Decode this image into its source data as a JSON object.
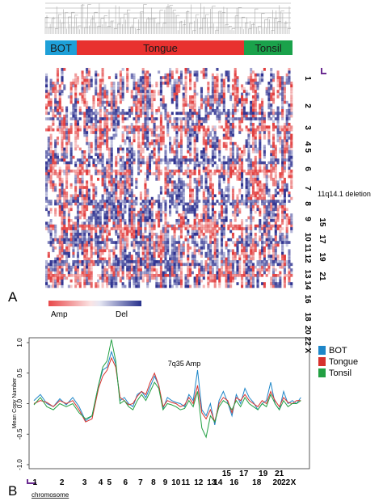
{
  "panel_a": {
    "label": "A",
    "groups": [
      {
        "name": "BOT",
        "color": "#1ea0d8"
      },
      {
        "name": "Tongue",
        "color": "#e8312f"
      },
      {
        "name": "Tonsil",
        "color": "#1aa24b"
      }
    ],
    "chromosome_labels": [
      "1",
      "2",
      "3",
      "4 5",
      "6",
      "7",
      "8",
      "9",
      "10 11",
      "12",
      "13 14",
      "15",
      "16",
      "17",
      "18",
      "19",
      "20 22 X",
      "21"
    ],
    "annotation": "11q14.1 deletion",
    "legend": {
      "amp_label": "Amp",
      "del_label": "Del",
      "amp_color": "#e8484a",
      "del_color": "#27318c"
    },
    "colors": {
      "amp": "#e23b3b",
      "del": "#2b2f8f"
    }
  },
  "panel_b": {
    "label": "B",
    "chart_data": {
      "type": "line",
      "title": "",
      "annotation": "7q35 Amp",
      "ylabel": "Mean Copy Number",
      "xlabel": "chromosome",
      "ylim": [
        -1.0,
        1.0
      ],
      "yticks": [
        "1.0",
        "0.5",
        "0.0",
        "-0.5",
        "-1.0"
      ],
      "ytick_values": [
        1.0,
        0.5,
        0.0,
        -0.5,
        -1.0
      ],
      "x_tick_labels": [
        {
          "label": "1",
          "row": 2,
          "pos": 0.05
        },
        {
          "label": "2",
          "row": 2,
          "pos": 1.3
        },
        {
          "label": "3",
          "row": 2,
          "pos": 2.35
        },
        {
          "label": "4",
          "row": 2,
          "pos": 3.1
        },
        {
          "label": "5",
          "row": 2,
          "pos": 3.5
        },
        {
          "label": "6",
          "row": 2,
          "pos": 4.25
        },
        {
          "label": "7",
          "row": 2,
          "pos": 4.95
        },
        {
          "label": "8",
          "row": 2,
          "pos": 5.55
        },
        {
          "label": "9",
          "row": 2,
          "pos": 6.1
        },
        {
          "label": "10",
          "row": 2,
          "pos": 6.6
        },
        {
          "label": "11",
          "row": 2,
          "pos": 7.05
        },
        {
          "label": "12",
          "row": 2,
          "pos": 7.65
        },
        {
          "label": "13",
          "row": 2,
          "pos": 8.25
        },
        {
          "label": "14",
          "row": 2,
          "pos": 8.55
        },
        {
          "label": "15",
          "row": 1,
          "pos": 8.95
        },
        {
          "label": "16",
          "row": 2,
          "pos": 9.3
        },
        {
          "label": "17",
          "row": 1,
          "pos": 9.75
        },
        {
          "label": "18",
          "row": 2,
          "pos": 10.35
        },
        {
          "label": "19",
          "row": 1,
          "pos": 10.65
        },
        {
          "label": "20",
          "row": 2,
          "pos": 11.3
        },
        {
          "label": "21",
          "row": 1,
          "pos": 11.4
        },
        {
          "label": "22",
          "row": 2,
          "pos": 11.7
        },
        {
          "label": "X",
          "row": 2,
          "pos": 12.05
        }
      ],
      "x_range": [
        0,
        12.5
      ],
      "series": [
        {
          "name": "BOT",
          "color": "#1e86c8",
          "x": [
            0,
            0.3,
            0.6,
            0.9,
            1.2,
            1.5,
            1.8,
            2.1,
            2.4,
            2.7,
            3.0,
            3.2,
            3.4,
            3.6,
            3.8,
            4.0,
            4.2,
            4.4,
            4.6,
            4.8,
            5.0,
            5.2,
            5.4,
            5.6,
            5.8,
            6.0,
            6.2,
            6.4,
            6.6,
            6.8,
            7.0,
            7.2,
            7.4,
            7.6,
            7.8,
            8.0,
            8.2,
            8.4,
            8.6,
            8.8,
            9.0,
            9.2,
            9.4,
            9.6,
            9.8,
            10.0,
            10.2,
            10.4,
            10.6,
            10.8,
            11.0,
            11.2,
            11.4,
            11.6,
            11.8,
            12.0,
            12.2,
            12.4
          ],
          "y": [
            0.05,
            0.15,
            0.0,
            -0.05,
            0.08,
            -0.02,
            0.1,
            -0.05,
            -0.28,
            -0.2,
            0.3,
            0.55,
            0.6,
            0.85,
            0.65,
            0.05,
            0.1,
            0.0,
            -0.05,
            0.15,
            0.2,
            0.1,
            0.28,
            0.45,
            0.3,
            -0.08,
            0.1,
            0.05,
            0.02,
            0.0,
            -0.05,
            0.15,
            0.05,
            0.55,
            -0.1,
            -0.2,
            0.0,
            -0.35,
            0.05,
            0.2,
            0.02,
            -0.2,
            0.15,
            0.0,
            0.25,
            0.1,
            0.02,
            -0.1,
            0.0,
            0.05,
            0.35,
            0.0,
            -0.1,
            0.2,
            0.0,
            0.05,
            0.0,
            0.1
          ]
        },
        {
          "name": "Tongue",
          "color": "#d7312d",
          "x": [
            0,
            0.3,
            0.6,
            0.9,
            1.2,
            1.5,
            1.8,
            2.1,
            2.4,
            2.7,
            3.0,
            3.2,
            3.4,
            3.6,
            3.8,
            4.0,
            4.2,
            4.4,
            4.6,
            4.8,
            5.0,
            5.2,
            5.4,
            5.6,
            5.8,
            6.0,
            6.2,
            6.4,
            6.6,
            6.8,
            7.0,
            7.2,
            7.4,
            7.6,
            7.8,
            8.0,
            8.2,
            8.4,
            8.6,
            8.8,
            9.0,
            9.2,
            9.4,
            9.6,
            9.8,
            10.0,
            10.2,
            10.4,
            10.6,
            10.8,
            11.0,
            11.2,
            11.4,
            11.6,
            11.8,
            12.0,
            12.2,
            12.4
          ],
          "y": [
            0.0,
            0.05,
            0.02,
            -0.05,
            0.05,
            0.0,
            0.05,
            -0.1,
            -0.3,
            -0.25,
            0.25,
            0.45,
            0.55,
            0.75,
            0.6,
            0.1,
            0.05,
            -0.02,
            0.0,
            0.12,
            0.2,
            0.15,
            0.35,
            0.5,
            0.3,
            -0.05,
            0.05,
            0.02,
            0.0,
            -0.05,
            -0.02,
            0.1,
            0.0,
            0.3,
            -0.15,
            -0.25,
            -0.1,
            -0.3,
            0.0,
            0.1,
            0.05,
            -0.15,
            0.1,
            0.05,
            0.15,
            0.05,
            0.0,
            -0.05,
            0.05,
            0.0,
            0.2,
            0.05,
            -0.05,
            0.1,
            0.02,
            0.0,
            0.05,
            0.05
          ]
        },
        {
          "name": "Tonsil",
          "color": "#23a043",
          "x": [
            0,
            0.3,
            0.6,
            0.9,
            1.2,
            1.5,
            1.8,
            2.1,
            2.4,
            2.7,
            3.0,
            3.2,
            3.4,
            3.6,
            3.8,
            4.0,
            4.2,
            4.4,
            4.6,
            4.8,
            5.0,
            5.2,
            5.4,
            5.6,
            5.8,
            6.0,
            6.2,
            6.4,
            6.6,
            6.8,
            7.0,
            7.2,
            7.4,
            7.6,
            7.8,
            8.0,
            8.2,
            8.4,
            8.6,
            8.8,
            9.0,
            9.2,
            9.4,
            9.6,
            9.8,
            10.0,
            10.2,
            10.4,
            10.6,
            10.8,
            11.0,
            11.2,
            11.4,
            11.6,
            11.8,
            12.0,
            12.2,
            12.4
          ],
          "y": [
            -0.02,
            0.1,
            -0.05,
            -0.1,
            0.0,
            -0.05,
            0.0,
            -0.15,
            -0.25,
            -0.2,
            0.3,
            0.6,
            0.7,
            1.05,
            0.7,
            0.0,
            0.05,
            -0.05,
            -0.1,
            0.05,
            0.15,
            0.05,
            0.2,
            0.35,
            0.25,
            -0.1,
            0.0,
            -0.02,
            -0.05,
            -0.1,
            -0.08,
            0.05,
            -0.05,
            0.2,
            -0.4,
            -0.55,
            -0.2,
            -0.3,
            -0.05,
            0.05,
            0.0,
            -0.1,
            0.05,
            -0.05,
            0.1,
            0.0,
            -0.05,
            -0.1,
            0.0,
            -0.05,
            0.15,
            0.0,
            -0.1,
            0.05,
            -0.05,
            0.0,
            0.0,
            0.05
          ]
        }
      ],
      "legend_placement": "right"
    }
  }
}
